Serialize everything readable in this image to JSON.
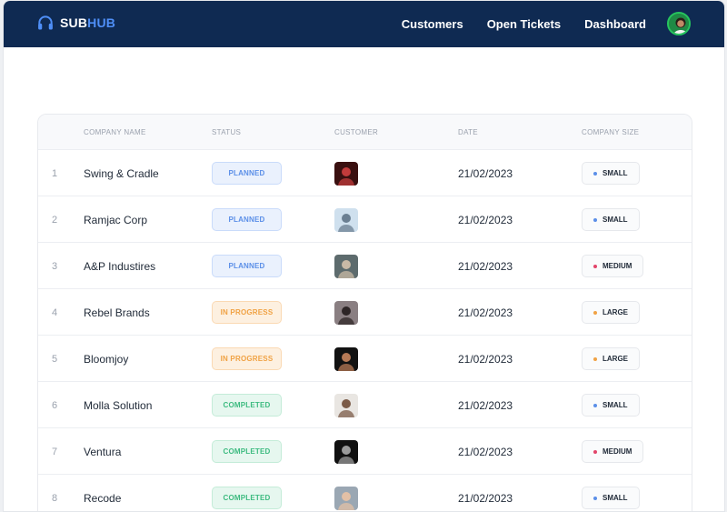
{
  "header": {
    "brand_sub": "SUB",
    "brand_hub": "HUB",
    "nav": [
      "Customers",
      "Open Tickets",
      "Dashboard"
    ]
  },
  "table": {
    "columns": [
      "COMPANY NAME",
      "STATUS",
      "CUSTOMER",
      "DATE",
      "COMPANY SIZE"
    ],
    "rows": [
      {
        "index": "1",
        "company": "Swing & Cradle",
        "status": "PLANNED",
        "status_type": "planned",
        "date": "21/02/2023",
        "size": "SMALL",
        "size_color": "#5b8fe8",
        "avatar_bg": "#3a1010",
        "avatar_fg": "#c23b3b"
      },
      {
        "index": "2",
        "company": "Ramjac Corp",
        "status": "PLANNED",
        "status_type": "planned",
        "date": "21/02/2023",
        "size": "SMALL",
        "size_color": "#5b8fe8",
        "avatar_bg": "#cfe0ee",
        "avatar_fg": "#6b7f92"
      },
      {
        "index": "3",
        "company": "A&P Industires",
        "status": "PLANNED",
        "status_type": "planned",
        "date": "21/02/2023",
        "size": "MEDIUM",
        "size_color": "#e2456a",
        "avatar_bg": "#5d6b6d",
        "avatar_fg": "#c9b9a6"
      },
      {
        "index": "4",
        "company": "Rebel Brands",
        "status": "IN PROGRESS",
        "status_type": "progress",
        "date": "21/02/2023",
        "size": "LARGE",
        "size_color": "#f0a244",
        "avatar_bg": "#8a7f82",
        "avatar_fg": "#2d2526"
      },
      {
        "index": "5",
        "company": "Bloomjoy",
        "status": "IN PROGRESS",
        "status_type": "progress",
        "date": "21/02/2023",
        "size": "LARGE",
        "size_color": "#f0a244",
        "avatar_bg": "#121212",
        "avatar_fg": "#b77a56"
      },
      {
        "index": "6",
        "company": "Molla Solution",
        "status": "COMPLETED",
        "status_type": "completed",
        "date": "21/02/2023",
        "size": "SMALL",
        "size_color": "#5b8fe8",
        "avatar_bg": "#e9e6e2",
        "avatar_fg": "#7b5b48"
      },
      {
        "index": "7",
        "company": "Ventura",
        "status": "COMPLETED",
        "status_type": "completed",
        "date": "21/02/2023",
        "size": "MEDIUM",
        "size_color": "#e2456a",
        "avatar_bg": "#101010",
        "avatar_fg": "#9a9a9a"
      },
      {
        "index": "8",
        "company": "Recode",
        "status": "COMPLETED",
        "status_type": "completed",
        "date": "21/02/2023",
        "size": "SMALL",
        "size_color": "#5b8fe8",
        "avatar_bg": "#9aa7b3",
        "avatar_fg": "#e2c0a6"
      }
    ]
  },
  "colors": {
    "header_bg": "#0f2a52",
    "accent": "#4f8ff7"
  }
}
